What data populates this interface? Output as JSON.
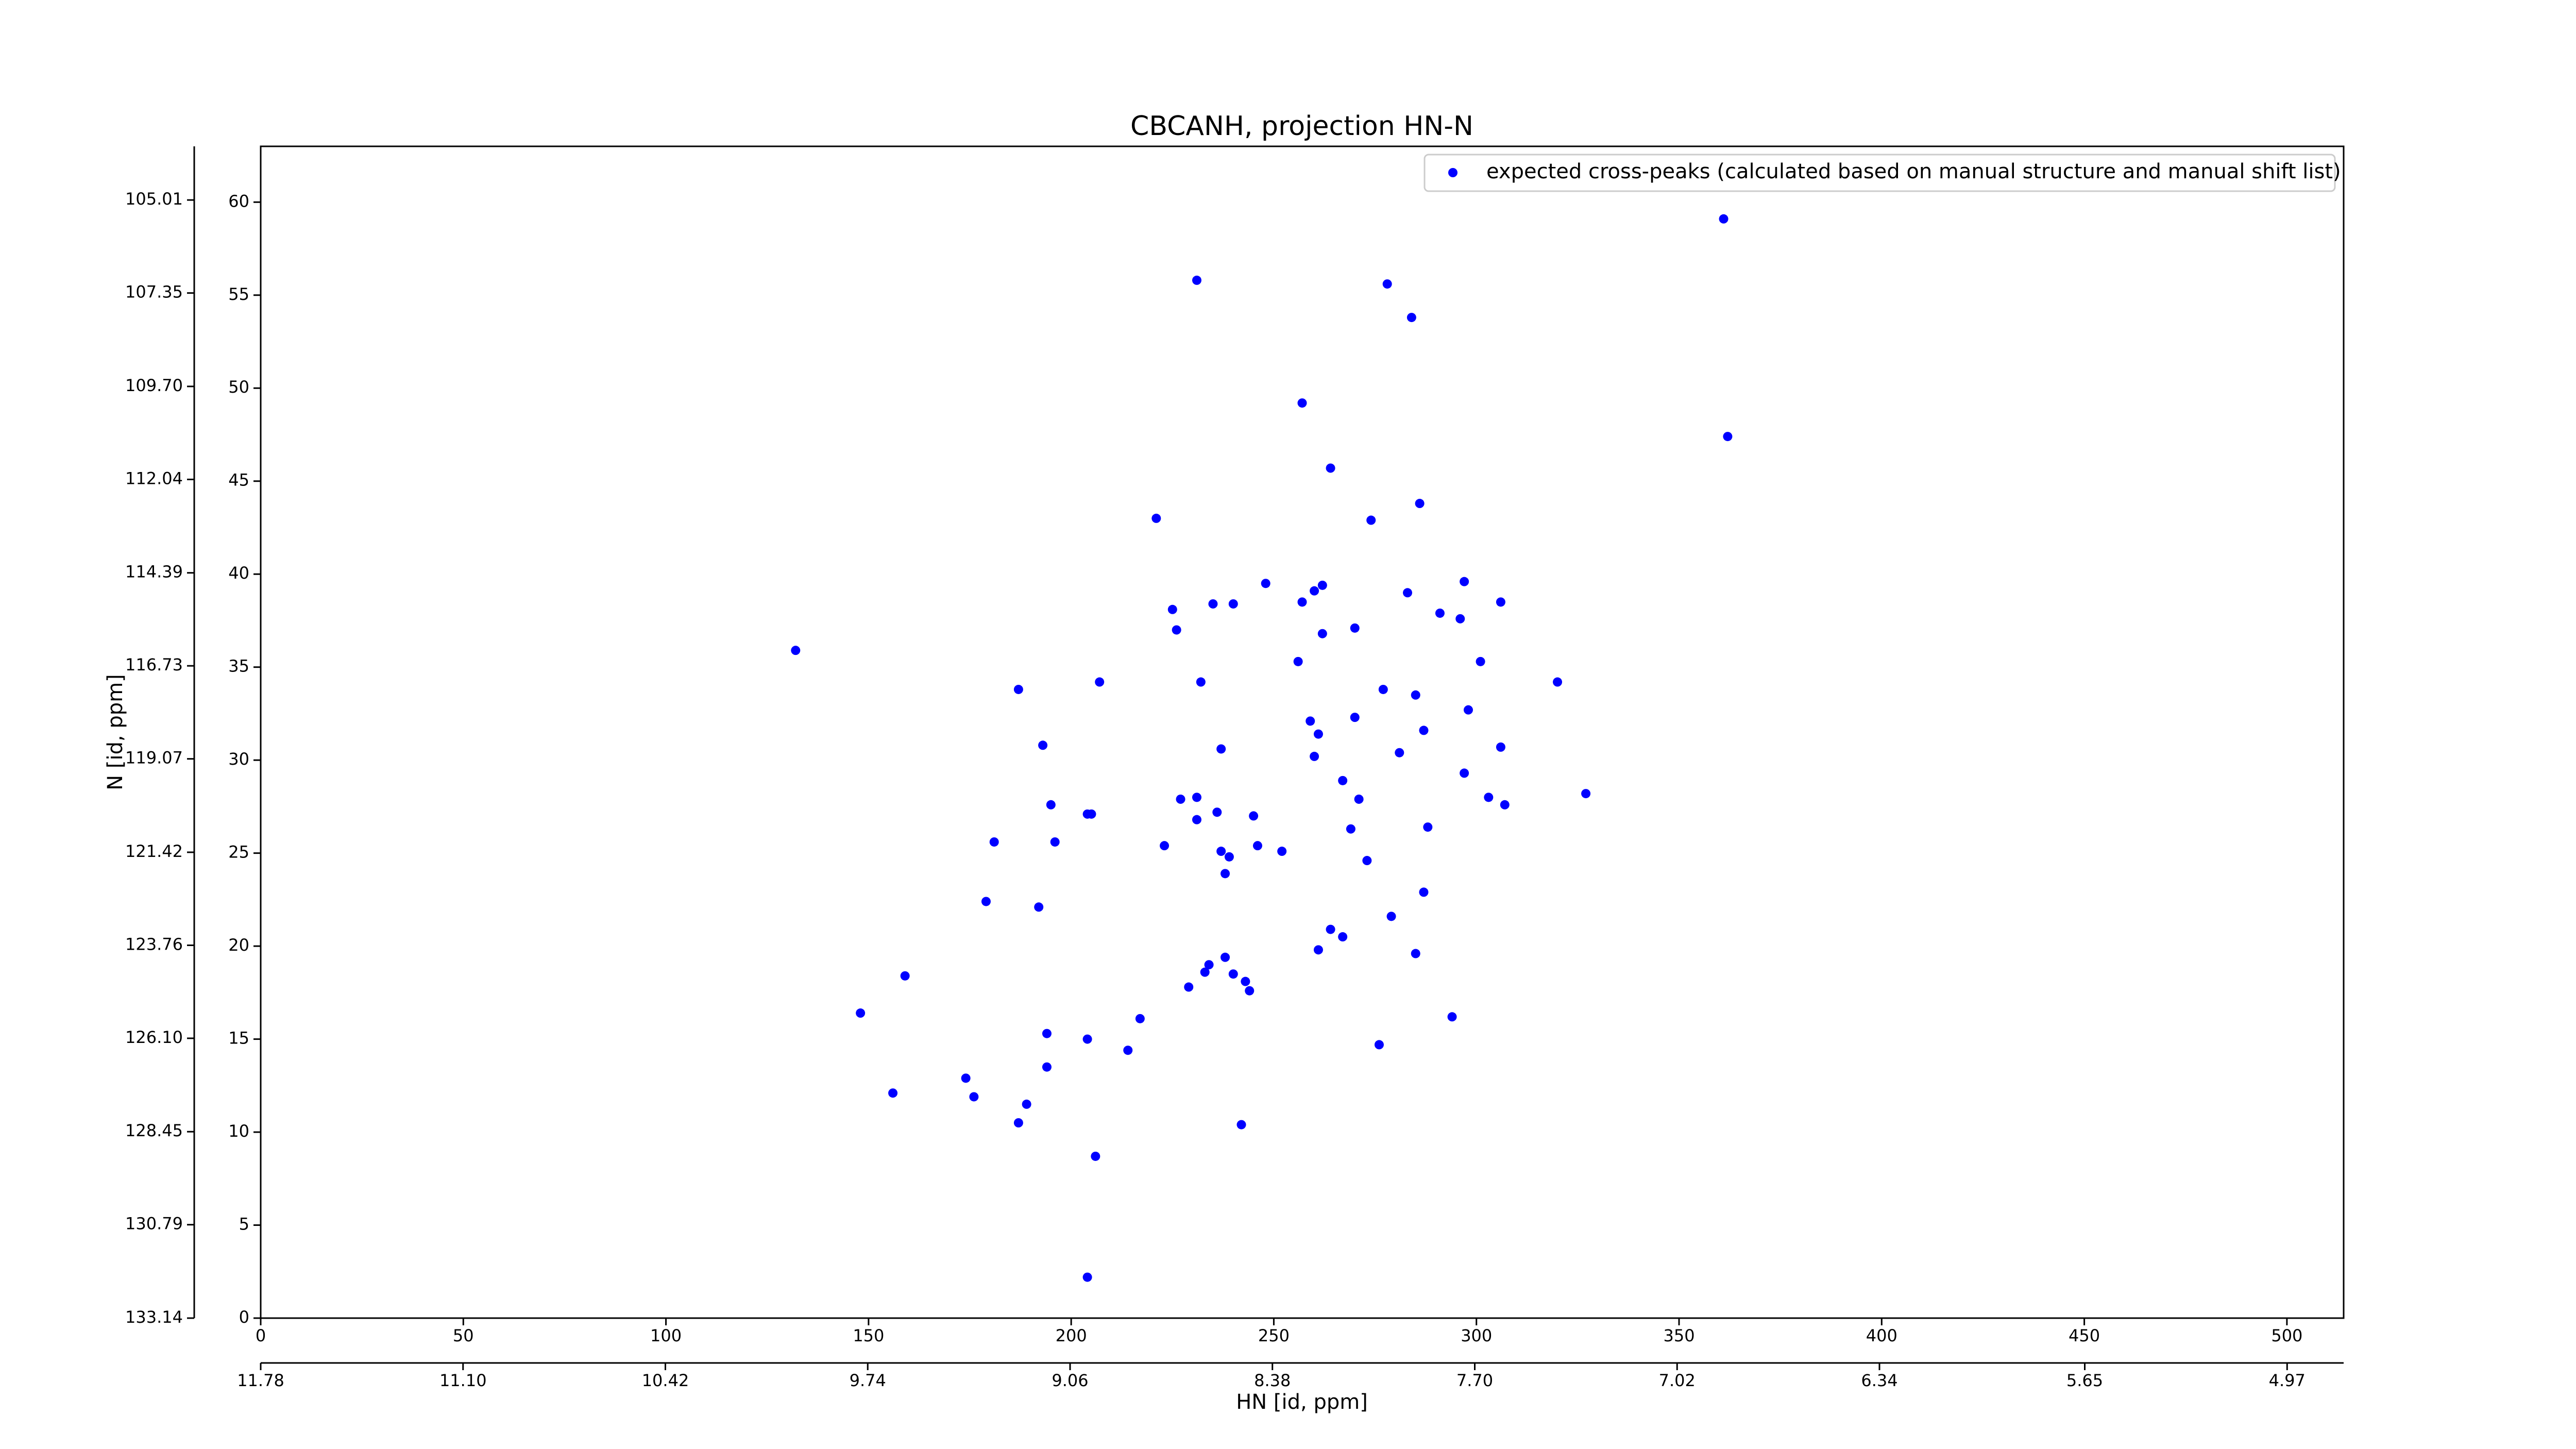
{
  "chart_data": {
    "type": "scatter",
    "title": "CBCANH, projection HN-N",
    "xlabel": "HN [id, ppm]",
    "ylabel": "N [id, ppm]",
    "xlim": [
      0,
      514
    ],
    "xticks": [
      0,
      50,
      100,
      150,
      200,
      250,
      300,
      350,
      400,
      450,
      500
    ],
    "ylim": [
      0,
      63
    ],
    "yticks": [
      0,
      5,
      10,
      15,
      20,
      25,
      30,
      35,
      40,
      45,
      50,
      55,
      60
    ],
    "x2lim": [
      11.78,
      4.78
    ],
    "x2ticks": [
      11.78,
      {
        "value": 11.1,
        "label": "11.10"
      },
      10.42,
      9.74,
      9.06,
      8.38,
      {
        "value": 7.7,
        "label": "7.70"
      },
      7.02,
      6.34,
      5.65,
      4.97
    ],
    "y2lim": [
      133.14,
      103.66
    ],
    "y2ticks": [
      133.14,
      130.79,
      128.45,
      {
        "value": 126.1,
        "label": "126.10"
      },
      123.76,
      121.42,
      119.07,
      116.73,
      114.39,
      112.04,
      {
        "value": 109.7,
        "label": "109.70"
      },
      107.35,
      105.01
    ],
    "legend": "upper right",
    "series": [
      {
        "name": "expected cross-peaks (calculated based on manual structure and manual shift list)",
        "color": "#0000ff",
        "x": [
          361,
          231,
          278,
          284,
          257,
          362,
          264,
          286,
          221,
          274,
          248,
          283,
          260,
          262,
          297,
          225,
          235,
          240,
          257,
          291,
          296,
          306,
          226,
          262,
          270,
          132,
          301,
          256,
          207,
          232,
          187,
          277,
          320,
          285,
          270,
          298,
          287,
          259,
          193,
          237,
          261,
          260,
          281,
          297,
          306,
          227,
          195,
          205,
          231,
          267,
          271,
          236,
          303,
          307,
          327,
          231,
          245,
          204,
          269,
          288,
          181,
          196,
          223,
          237,
          239,
          246,
          252,
          273,
          238,
          179,
          192,
          287,
          264,
          279,
          267,
          261,
          285,
          229,
          234,
          233,
          238,
          240,
          243,
          244,
          148,
          159,
          217,
          294,
          214,
          204,
          194,
          276,
          194,
          156,
          174,
          176,
          189,
          187,
          242,
          206,
          204
        ],
        "y": [
          59.1,
          55.8,
          55.6,
          53.8,
          49.2,
          47.4,
          45.7,
          43.8,
          43.0,
          42.9,
          39.5,
          39.0,
          39.1,
          39.4,
          39.6,
          38.1,
          38.4,
          38.4,
          38.5,
          37.9,
          37.6,
          38.5,
          37.0,
          36.8,
          37.1,
          35.9,
          35.3,
          35.3,
          34.2,
          34.2,
          33.8,
          33.8,
          34.2,
          33.5,
          32.3,
          32.7,
          31.6,
          32.1,
          30.8,
          30.6,
          31.4,
          30.2,
          30.4,
          29.3,
          30.7,
          27.9,
          27.6,
          27.1,
          28.0,
          28.9,
          27.9,
          27.2,
          28.0,
          27.6,
          28.2,
          26.8,
          27.0,
          27.1,
          26.3,
          26.4,
          25.6,
          25.6,
          25.4,
          25.1,
          24.8,
          25.4,
          25.1,
          24.6,
          23.9,
          22.4,
          22.1,
          22.9,
          20.9,
          21.6,
          20.5,
          19.8,
          19.6,
          17.8,
          19.0,
          18.6,
          19.4,
          18.5,
          18.1,
          17.6,
          16.4,
          18.4,
          16.1,
          16.2,
          14.4,
          15.0,
          15.3,
          14.7,
          13.5,
          12.1,
          12.9,
          11.9,
          11.5,
          10.5,
          10.4,
          8.7,
          2.2
        ]
      }
    ]
  }
}
